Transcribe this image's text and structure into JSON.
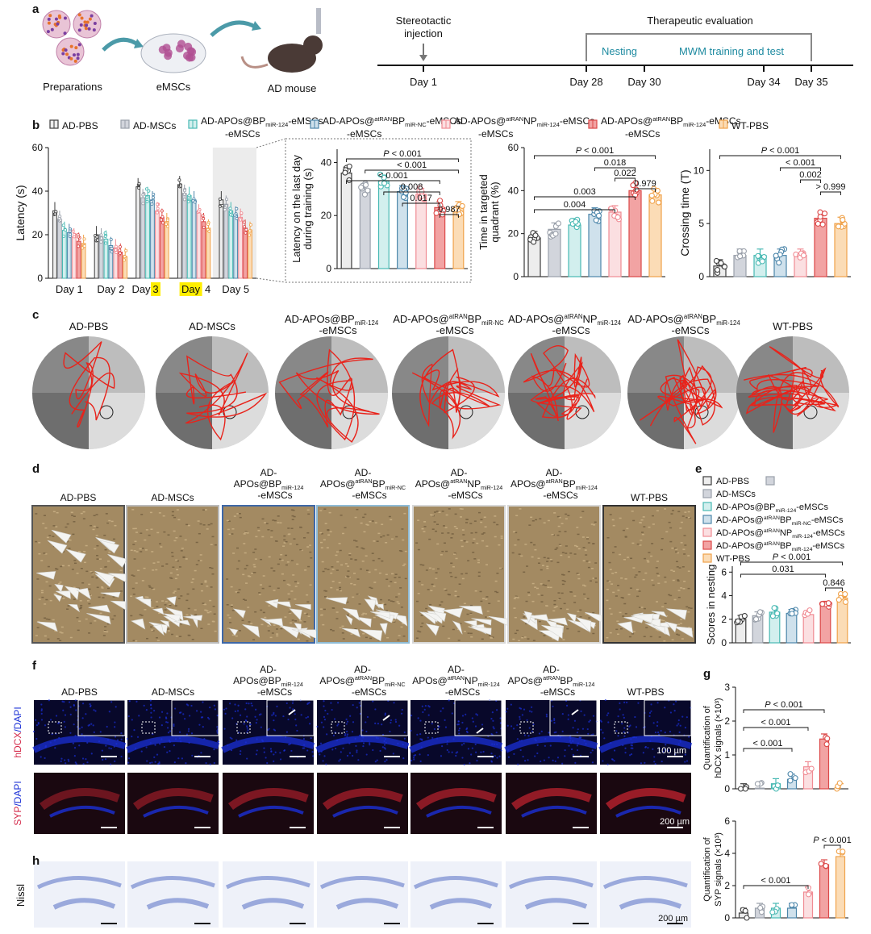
{
  "panel_labels": [
    "a",
    "b",
    "c",
    "d",
    "e",
    "f",
    "g",
    "h"
  ],
  "colors": {
    "AD-PBS": "#3d3d3d",
    "AD-MSCs": "#9aa0aa",
    "BP124": "#48b9b3",
    "BPNC": "#4c86aa",
    "NP124": "#f08b93",
    "atBP124": "#dc4848",
    "WT-PBS": "#f0a24a",
    "fill_AD-PBS": "#ededed",
    "fill_AD-MSCs": "#d2d5dc",
    "fill_BP124": "#d2efee",
    "fill_BPNC": "#cfe1ec",
    "fill_NP124": "#fbdfe1",
    "fill_atBP124": "#f2a3a3",
    "fill_WT-PBS": "#fbdcb6",
    "track": "#e8231b",
    "dapi": "#1a2fd6",
    "hdcx": "#d42a4a",
    "syp": "#b0202c",
    "nissl": "#9aa9dc"
  },
  "panel_a": {
    "left_labels": [
      "Preparations",
      "eMSCs",
      "AD mouse"
    ],
    "timeline": {
      "top_labels": [
        "Stereotactic",
        "injection",
        "Therapeutic evaluation"
      ],
      "bracket_labels": [
        "Nesting",
        "MWM training and test"
      ],
      "days": [
        "Day 1",
        "Day 28",
        "Day 30",
        "Day 34",
        "Day 35"
      ]
    }
  },
  "legend_b": [
    {
      "key": "AD-PBS",
      "label": "AD-PBS"
    },
    {
      "key": "AD-MSCs",
      "label": "AD-MSCs"
    },
    {
      "key": "BP124",
      "label1": "AD-APOs@BP",
      "sub": "miR-124",
      "label2": "-eMSCs"
    },
    {
      "key": "BPNC",
      "label1": "AD-APOs@",
      "sup": "atRAN",
      "label1b": "BP",
      "sub": "miR-NC",
      "label2": "-eMSCs"
    },
    {
      "key": "NP124",
      "label1": "AD-APOs@",
      "sup": "atRAN",
      "label1b": "NP",
      "sub": "miR-124",
      "label2": "-eMSCs"
    },
    {
      "key": "atBP124",
      "label1": "AD-APOs@",
      "sup": "atRAN",
      "label1b": "BP",
      "sub": "miR-124",
      "label2": "-eMSCs"
    },
    {
      "key": "WT-PBS",
      "label": "WT-PBS"
    }
  ],
  "group_titles": [
    {
      "l1": "AD-PBS"
    },
    {
      "l1": "AD-MSCs"
    },
    {
      "l1": "AD-APOs@BP",
      "sub": "miR-124",
      "l2": "-eMSCs"
    },
    {
      "l1": "AD-APOs@",
      "sup": "atRAN",
      "l1b": "BP",
      "sub": "miR-NC",
      "l2": "-eMSCs"
    },
    {
      "l1": "AD-APOs@",
      "sup": "atRAN",
      "l1b": "NP",
      "sub": "miR-124",
      "l2": "-eMSCs"
    },
    {
      "l1": "AD-APOs@",
      "sup": "atRAN",
      "l1b": "BP",
      "sub": "miR-124",
      "l2": "-eMSCs"
    },
    {
      "l1": "WT-PBS"
    }
  ],
  "group_titles_split": [
    {
      "l1": "AD-PBS"
    },
    {
      "l1": "AD-MSCs"
    },
    {
      "l0": "AD-",
      "l1": "APOs@BP",
      "sub": "miR-124",
      "l2": "-eMSCs"
    },
    {
      "l0": "AD-",
      "l1": "APOs@",
      "sup": "atRAN",
      "l1b": "BP",
      "sub": "miR-NC",
      "l2": "-eMSCs"
    },
    {
      "l0": "AD-",
      "l1": "APOs@",
      "sup": "atRAN",
      "l1b": "NP",
      "sub": "miR-124",
      "l2": "-eMSCs"
    },
    {
      "l0": "AD-",
      "l1": "APOs@",
      "sup": "atRAN",
      "l1b": "BP",
      "sub": "miR-124",
      "l2": "-eMSCs"
    },
    {
      "l1": "WT-PBS"
    }
  ],
  "legend_e": [
    {
      "key": "AD-PBS",
      "label": "AD-PBS"
    },
    {
      "key": "AD-MSCs",
      "label": "AD-MSCs"
    },
    {
      "key": "BP124",
      "label1": "AD-APOs@BP",
      "sub": "miR-124",
      "label2": "-eMSCs"
    },
    {
      "key": "BPNC",
      "label1": "AD-APOs@",
      "sup": "atRAN",
      "label1b": "BP",
      "sub": "miR-NC",
      "label2": "-eMSCs"
    },
    {
      "key": "NP124",
      "label1": "AD-APOs@",
      "sup": "atRAN",
      "label1b": "NP",
      "sub": "miR-124",
      "label2": "-eMSCs"
    },
    {
      "key": "atBP124",
      "label1": "AD-APOs@",
      "sup": "atRAN",
      "label1b": "BP",
      "sub": "miR-124",
      "label2": "-eMSCs"
    },
    {
      "key": "WT-PBS",
      "label": "WT-PBS"
    }
  ],
  "panel_f": {
    "row1_label": [
      "hDCX",
      "/DAPI"
    ],
    "row2_label": [
      "SYP",
      "/DAPI"
    ],
    "scale1": "100 µm",
    "scale2": "200 µm"
  },
  "panel_h": {
    "row_label": "Nissl",
    "scale": "200 µm"
  },
  "chart_data": [
    {
      "id": "b1",
      "type": "bar",
      "ylabel": "Latency (s)",
      "ylim": [
        0,
        60
      ],
      "yticks": [
        0,
        20,
        40,
        60
      ],
      "categories": [
        "Day 1",
        "Day 2",
        "Day 3",
        "Day 4",
        "Day 5"
      ],
      "highlighted_text": [
        "3",
        "Day"
      ],
      "series": [
        {
          "key": "AD-PBS",
          "values": [
            31,
            20,
            42,
            43,
            36
          ]
        },
        {
          "key": "AD-MSCs",
          "values": [
            27,
            19,
            37,
            39,
            34
          ]
        },
        {
          "key": "BP124",
          "values": [
            22,
            18,
            38,
            38,
            31
          ]
        },
        {
          "key": "BPNC",
          "values": [
            21,
            15,
            36,
            36,
            29
          ]
        },
        {
          "key": "NP124",
          "values": [
            19,
            14,
            31,
            30,
            28
          ]
        },
        {
          "key": "atBP124",
          "values": [
            17,
            12,
            28,
            26,
            23
          ]
        },
        {
          "key": "WT-PBS",
          "values": [
            16,
            10,
            26,
            23,
            22
          ]
        }
      ]
    },
    {
      "id": "b2",
      "type": "bar",
      "ylabel_lines": [
        "Latency on the last day",
        "during training (s)"
      ],
      "ylim": [
        0,
        45
      ],
      "yticks": [
        0,
        20,
        40
      ],
      "values": [
        36,
        30,
        33,
        29,
        28,
        23,
        23
      ],
      "annotations": [
        "P < 0.001",
        "< 0.001",
        "< 0.001",
        "0.008",
        "0.017",
        "0.987"
      ]
    },
    {
      "id": "b3",
      "type": "bar",
      "ylabel_lines": [
        "Time in targeted",
        "quadrant (%)"
      ],
      "ylim": [
        0,
        60
      ],
      "yticks": [
        0,
        20,
        40,
        60
      ],
      "values": [
        18,
        22,
        24,
        29,
        30,
        40,
        38
      ],
      "annotations": [
        "P < 0.001",
        "0.018",
        "0.022",
        "0.979",
        "0.003",
        "0.004"
      ]
    },
    {
      "id": "b4",
      "type": "bar",
      "ylabel": "Crossing time (T)",
      "ylim": [
        0,
        12
      ],
      "yticks": [
        0,
        5,
        10
      ],
      "values": [
        1,
        2,
        2,
        2,
        2,
        5.5,
        5
      ],
      "annotations": [
        "P < 0.001",
        "< 0.001",
        "0.002",
        "> 0.999"
      ]
    },
    {
      "id": "e",
      "type": "bar",
      "ylabel": "Scores in nesting",
      "ylim": [
        0,
        6.5
      ],
      "yticks": [
        0,
        2,
        4,
        6
      ],
      "values": [
        2,
        2.3,
        2.6,
        2.5,
        2.4,
        3.2,
        3.8
      ],
      "annotations": [
        "P < 0.001",
        "0.031",
        "0.846"
      ]
    },
    {
      "id": "g1",
      "type": "bar",
      "ylabel_lines": [
        "Quantification of",
        "hDCX signals (×10³)"
      ],
      "ylim": [
        0,
        3
      ],
      "yticks": [
        0,
        1,
        2,
        3
      ],
      "values": [
        0.0,
        0.02,
        0.15,
        0.28,
        0.65,
        1.47,
        0.0
      ],
      "annotations": [
        "P < 0.001",
        "< 0.001",
        "< 0.001"
      ]
    },
    {
      "id": "g2",
      "type": "bar",
      "ylabel_lines": [
        "Quantification of",
        "SYP signals (×10³)"
      ],
      "ylim": [
        0,
        6
      ],
      "yticks": [
        0,
        2,
        4,
        6
      ],
      "values": [
        0.3,
        0.6,
        0.6,
        0.6,
        1.6,
        3.3,
        3.8
      ],
      "annotations": [
        "P < 0.001",
        "< 0.001"
      ]
    }
  ]
}
